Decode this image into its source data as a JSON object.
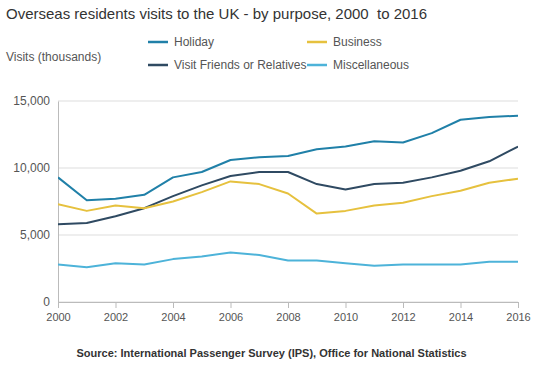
{
  "chart_data": {
    "type": "line",
    "title": "Overseas residents visits to the UK - by purpose, 2000  to 2016",
    "y_label": "Visits (thousands)",
    "source": "Source: International Passenger Survey (IPS), Office for National Statistics",
    "x": [
      2000,
      2001,
      2002,
      2003,
      2004,
      2005,
      2006,
      2007,
      2008,
      2009,
      2010,
      2011,
      2012,
      2013,
      2014,
      2015,
      2016
    ],
    "xlim": [
      2000,
      2016
    ],
    "xticks": [
      2000,
      2002,
      2004,
      2006,
      2008,
      2010,
      2012,
      2014,
      2016
    ],
    "ylim": [
      0,
      15000
    ],
    "yticks": [
      0,
      {
        "value": 5000,
        "label": "5,000"
      },
      {
        "value": 10000,
        "label": "10,000"
      },
      {
        "value": 15000,
        "label": "15,000"
      }
    ],
    "grid": true,
    "legend": "top",
    "series": [
      {
        "name": "Holiday",
        "color": "#2080a8",
        "values": [
          9300,
          7600,
          7700,
          8000,
          9300,
          9700,
          10600,
          10800,
          10900,
          11400,
          11600,
          12000,
          11900,
          12600,
          13600,
          13800,
          13900
        ]
      },
      {
        "name": "Visit Friends or Relatives",
        "color": "#2f4a62",
        "values": [
          5800,
          5900,
          6400,
          7000,
          7900,
          8700,
          9400,
          9700,
          9700,
          8800,
          8400,
          8800,
          8900,
          9300,
          9800,
          10500,
          11600
        ]
      },
      {
        "name": "Business",
        "color": "#e6c13e",
        "values": [
          7300,
          6800,
          7200,
          7000,
          7500,
          8200,
          9000,
          8800,
          8100,
          6600,
          6800,
          7200,
          7400,
          7900,
          8300,
          8900,
          9200
        ]
      },
      {
        "name": "Miscellaneous",
        "color": "#4db3d9",
        "values": [
          2800,
          2600,
          2900,
          2800,
          3200,
          3400,
          3700,
          3500,
          3100,
          3100,
          2900,
          2700,
          2800,
          2800,
          2800,
          3000,
          3000
        ]
      }
    ]
  }
}
